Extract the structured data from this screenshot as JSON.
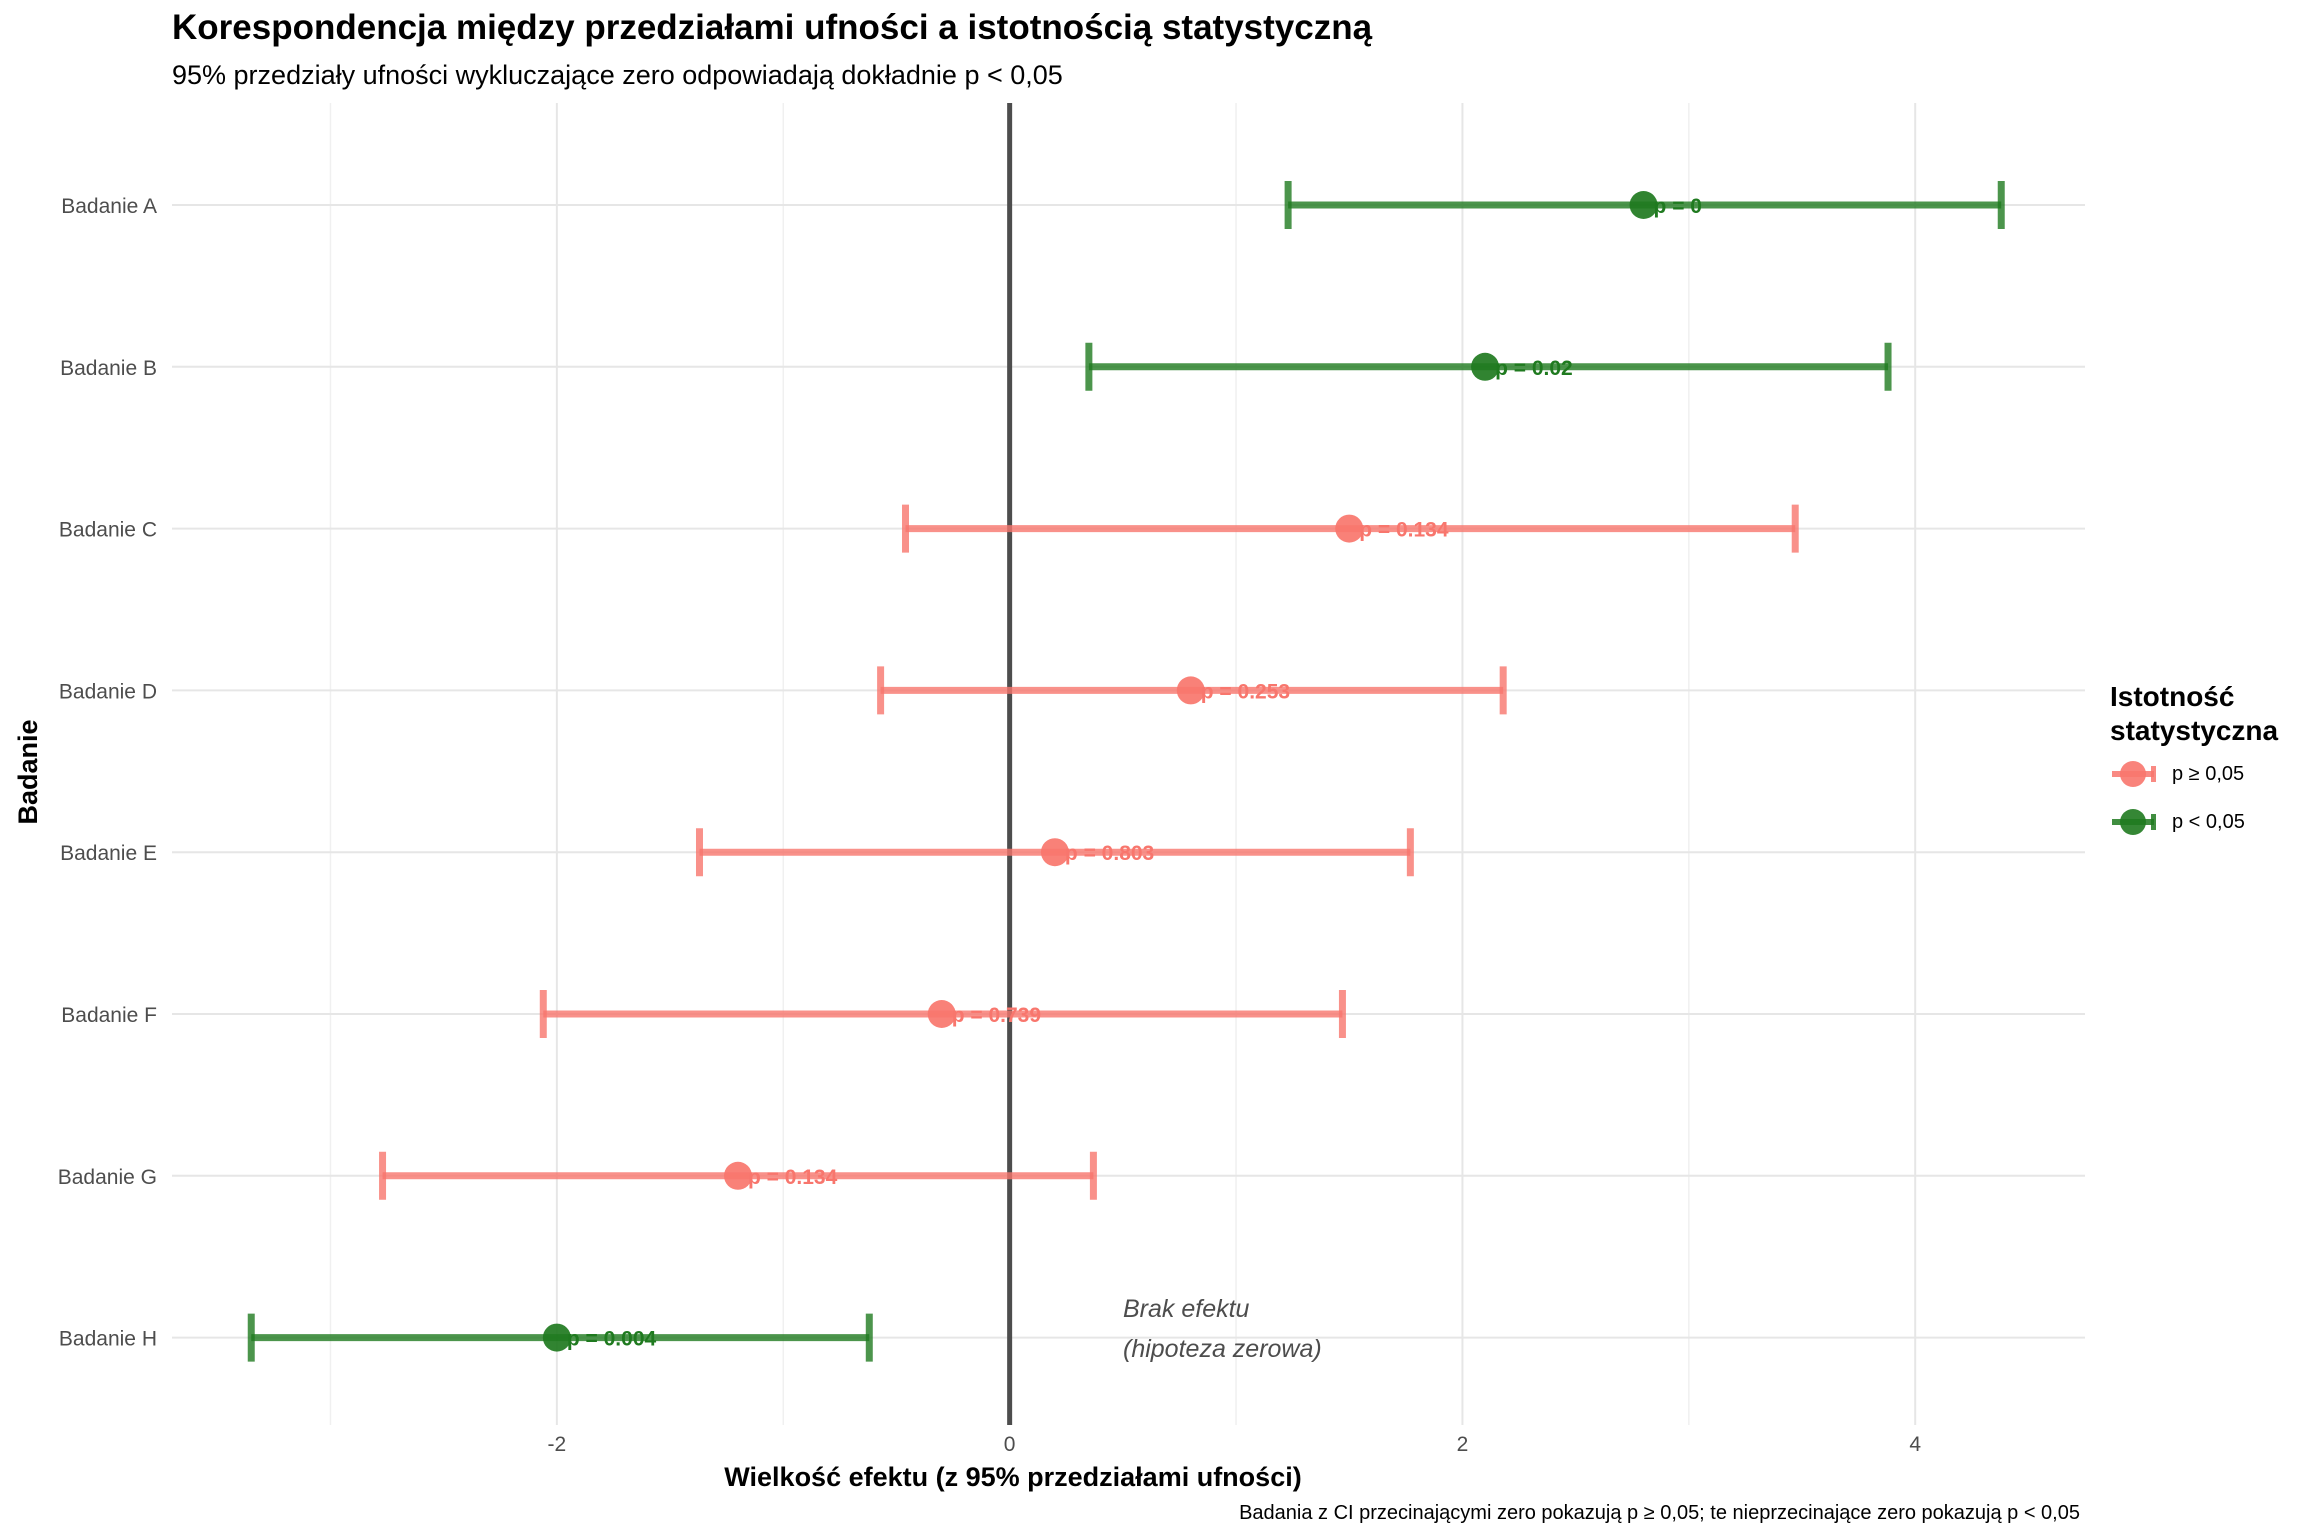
{
  "chart_data": {
    "type": "scatter",
    "title": "Korespondencja między przedziałami ufności a istotnością statystyczną",
    "subtitle": "95% przedziały ufności wykluczające zero odpowiadają dokładnie p < 0,05",
    "xlabel": "Wielkość efektu (z 95% przedziałami ufności)",
    "ylabel": "Badanie",
    "caption": "Badania z CI przecinającymi zero pokazują p ≥ 0,05; te nieprzecinające zero pokazują p < 0,05",
    "xlim": [
      -3.7,
      4.75
    ],
    "x_ticks": [
      -2,
      0,
      2,
      4
    ],
    "x_tick_labels": [
      "-2",
      "0",
      "2",
      "4"
    ],
    "grid": true,
    "reference_line": {
      "x": 0,
      "label_line1": "Brak efektu",
      "label_line2": "(hipoteza zerowa)"
    },
    "legend": {
      "position": "right",
      "title": "Istotność statystyczna",
      "entries": [
        {
          "label": "p ≥ 0,05",
          "color": "#f8766d"
        },
        {
          "label": "p < 0,05",
          "color": "#1f7a1f"
        }
      ]
    },
    "colors": {
      "not_significant": "#f8766d",
      "significant": "#1f7a1f",
      "null_line": "#4d4d4d"
    },
    "studies": [
      {
        "name": "Badanie A",
        "estimate": 2.8,
        "lower": 1.23,
        "upper": 4.38,
        "p_label": "p = 0",
        "significant": true
      },
      {
        "name": "Badanie B",
        "estimate": 2.1,
        "lower": 0.35,
        "upper": 3.88,
        "p_label": "p = 0.02",
        "significant": true
      },
      {
        "name": "Badanie C",
        "estimate": 1.5,
        "lower": -0.46,
        "upper": 3.47,
        "p_label": "p = 0.134",
        "significant": false
      },
      {
        "name": "Badanie D",
        "estimate": 0.8,
        "lower": -0.57,
        "upper": 2.18,
        "p_label": "p = 0.253",
        "significant": false
      },
      {
        "name": "Badanie E",
        "estimate": 0.2,
        "lower": -1.37,
        "upper": 1.77,
        "p_label": "p = 0.803",
        "significant": false
      },
      {
        "name": "Badanie F",
        "estimate": -0.3,
        "lower": -2.06,
        "upper": 1.47,
        "p_label": "p = 0.739",
        "significant": false
      },
      {
        "name": "Badanie G",
        "estimate": -1.2,
        "lower": -2.77,
        "upper": 0.37,
        "p_label": "p = 0.134",
        "significant": false
      },
      {
        "name": "Badanie H",
        "estimate": -2.0,
        "lower": -3.35,
        "upper": -0.62,
        "p_label": "p = 0.004",
        "significant": true
      }
    ]
  }
}
